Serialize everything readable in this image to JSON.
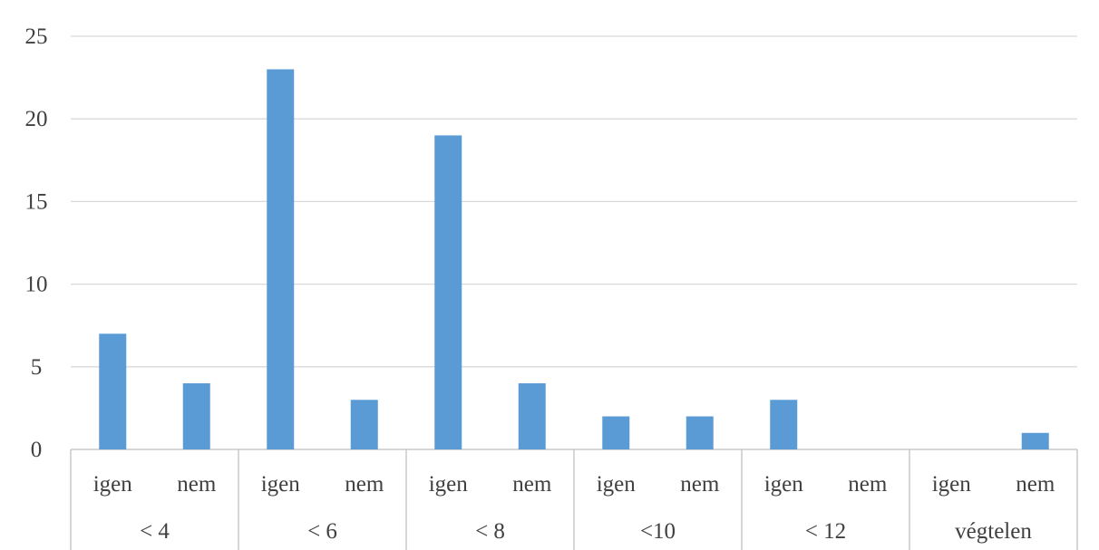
{
  "chart_data": {
    "type": "bar",
    "title": "",
    "xlabel": "",
    "ylabel": "",
    "ylim": [
      0,
      25
    ],
    "yticks": [
      0,
      5,
      10,
      15,
      20,
      25
    ],
    "grid": true,
    "legend": "none",
    "bar_color": "#5b9bd5",
    "groups": [
      {
        "label": "< 4",
        "categories": [
          "igen",
          "nem"
        ],
        "values": [
          7,
          4
        ]
      },
      {
        "label": "< 6",
        "categories": [
          "igen",
          "nem"
        ],
        "values": [
          23,
          3
        ]
      },
      {
        "label": "< 8",
        "categories": [
          "igen",
          "nem"
        ],
        "values": [
          19,
          4
        ]
      },
      {
        "label": "<10",
        "categories": [
          "igen",
          "nem"
        ],
        "values": [
          2,
          2
        ]
      },
      {
        "label": "< 12",
        "categories": [
          "igen",
          "nem"
        ],
        "values": [
          3,
          0
        ]
      },
      {
        "label": "végtelen",
        "categories": [
          "igen",
          "nem"
        ],
        "values": [
          0,
          1
        ]
      }
    ]
  }
}
